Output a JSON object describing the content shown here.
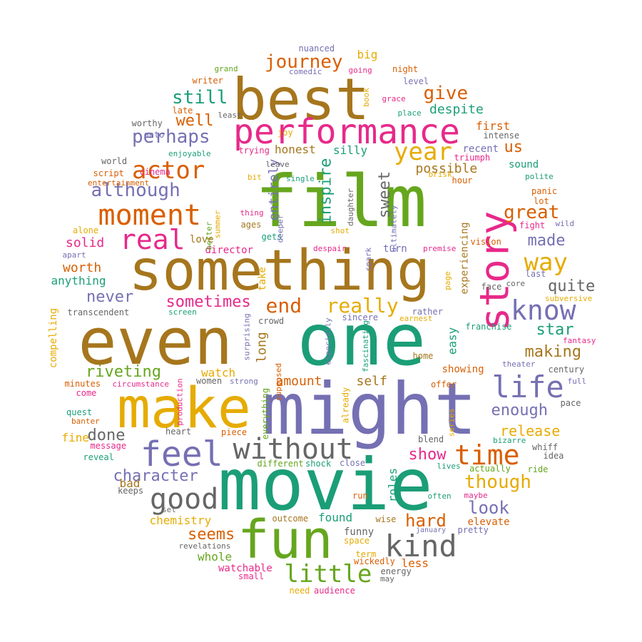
{
  "colors": {
    "green": "#66a61e",
    "purple": "#7570b3",
    "teal": "#1b9e77",
    "brown": "#a6761d",
    "orange": "#d95f02",
    "pink": "#e7298a",
    "gold": "#e6ab02",
    "gray": "#666666"
  },
  "words": [
    {
      "text": "film",
      "color": "green"
    },
    {
      "text": "one",
      "color": "teal"
    },
    {
      "text": "might",
      "color": "purple"
    },
    {
      "text": "movie",
      "color": "teal"
    },
    {
      "text": "fun",
      "color": "green"
    },
    {
      "text": "even",
      "color": "brown"
    },
    {
      "text": "make",
      "color": "gold"
    },
    {
      "text": "something",
      "color": "brown"
    },
    {
      "text": "best",
      "color": "brown"
    },
    {
      "text": "story",
      "color": "pink"
    },
    {
      "text": "performance",
      "color": "pink"
    },
    {
      "text": "feel",
      "color": "purple"
    },
    {
      "text": "moment",
      "color": "orange"
    },
    {
      "text": "real",
      "color": "pink"
    },
    {
      "text": "without",
      "color": "gray"
    },
    {
      "text": "good",
      "color": "gray"
    },
    {
      "text": "kind",
      "color": "gray"
    },
    {
      "text": "life",
      "color": "purple"
    },
    {
      "text": "time",
      "color": "orange"
    },
    {
      "text": "know",
      "color": "purple"
    },
    {
      "text": "actor",
      "color": "orange"
    },
    {
      "text": "year",
      "color": "gold"
    },
    {
      "text": "little",
      "color": "green"
    },
    {
      "text": "way",
      "color": "gold"
    },
    {
      "text": "journey",
      "color": "orange"
    },
    {
      "text": "perhaps",
      "color": "purple"
    },
    {
      "text": "although",
      "color": "purple"
    },
    {
      "text": "still",
      "color": "teal"
    },
    {
      "text": "give",
      "color": "orange"
    },
    {
      "text": "great",
      "color": "orange"
    },
    {
      "text": "really",
      "color": "gold"
    },
    {
      "text": "end",
      "color": "orange"
    },
    {
      "text": "sometimes",
      "color": "pink"
    },
    {
      "text": "never",
      "color": "purple"
    },
    {
      "text": "well",
      "color": "orange"
    },
    {
      "text": "us",
      "color": "orange"
    },
    {
      "text": "despite",
      "color": "teal"
    },
    {
      "text": "made",
      "color": "purple"
    },
    {
      "text": "quite",
      "color": "gray"
    },
    {
      "text": "star",
      "color": "teal"
    },
    {
      "text": "making",
      "color": "brown"
    },
    {
      "text": "enough",
      "color": "purple"
    },
    {
      "text": "release",
      "color": "gold"
    },
    {
      "text": "though",
      "color": "gold"
    },
    {
      "text": "show",
      "color": "pink"
    },
    {
      "text": "look",
      "color": "purple"
    },
    {
      "text": "hard",
      "color": "orange"
    },
    {
      "text": "character",
      "color": "purple"
    },
    {
      "text": "done",
      "color": "gray"
    },
    {
      "text": "riveting",
      "color": "green"
    },
    {
      "text": "seems",
      "color": "orange"
    },
    {
      "text": "sweet",
      "color": "gray"
    },
    {
      "text": "inspire",
      "color": "teal"
    },
    {
      "text": "entirely",
      "color": "purple"
    },
    {
      "text": "possible",
      "color": "brown"
    },
    {
      "text": "long",
      "color": "brown"
    },
    {
      "text": "watch",
      "color": "gold"
    },
    {
      "text": "self",
      "color": "brown"
    },
    {
      "text": "amount",
      "color": "orange"
    },
    {
      "text": "solid",
      "color": "pink"
    },
    {
      "text": "worth",
      "color": "orange"
    },
    {
      "text": "anything",
      "color": "teal"
    },
    {
      "text": "honest",
      "color": "brown"
    },
    {
      "text": "silly",
      "color": "teal"
    },
    {
      "text": "first",
      "color": "orange"
    },
    {
      "text": "recent",
      "color": "purple"
    },
    {
      "text": "sound",
      "color": "teal"
    },
    {
      "text": "director",
      "color": "pink"
    },
    {
      "text": "love",
      "color": "brown"
    },
    {
      "text": "turn",
      "color": "purple"
    },
    {
      "text": "big",
      "color": "gold"
    },
    {
      "text": "chemistry",
      "color": "gold"
    },
    {
      "text": "whole",
      "color": "green"
    },
    {
      "text": "watchable",
      "color": "pink"
    },
    {
      "text": "found",
      "color": "teal"
    },
    {
      "text": "funny",
      "color": "gray"
    },
    {
      "text": "elevate",
      "color": "orange"
    },
    {
      "text": "roles",
      "color": "teal"
    },
    {
      "text": "less",
      "color": "orange"
    },
    {
      "text": "easy",
      "color": "teal"
    },
    {
      "text": "experiencing",
      "color": "brown"
    },
    {
      "text": "showing",
      "color": "orange"
    },
    {
      "text": "fine",
      "color": "gold"
    },
    {
      "text": "bad",
      "color": "brown"
    },
    {
      "text": "compelling",
      "color": "gold"
    },
    {
      "text": "transcendent",
      "color": "gray"
    },
    {
      "text": "take",
      "color": "gold"
    },
    {
      "text": "crowd",
      "color": "gray"
    },
    {
      "text": "sincere",
      "color": "purple"
    },
    {
      "text": "rather",
      "color": "purple"
    },
    {
      "text": "earnest",
      "color": "gold"
    },
    {
      "text": "franchise",
      "color": "teal"
    },
    {
      "text": "century",
      "color": "gray"
    },
    {
      "text": "full",
      "color": "purple"
    },
    {
      "text": "pace",
      "color": "gray"
    },
    {
      "text": "offer",
      "color": "orange"
    },
    {
      "text": "different",
      "color": "green"
    },
    {
      "text": "shock",
      "color": "teal"
    },
    {
      "text": "close",
      "color": "purple"
    },
    {
      "text": "run",
      "color": "orange"
    },
    {
      "text": "outcome",
      "color": "brown"
    },
    {
      "text": "wise",
      "color": "brown"
    },
    {
      "text": "space",
      "color": "gold"
    },
    {
      "text": "term",
      "color": "gold"
    },
    {
      "text": "wickedly",
      "color": "orange"
    },
    {
      "text": "energy",
      "color": "gray"
    },
    {
      "text": "may",
      "color": "gray"
    },
    {
      "text": "small",
      "color": "pink"
    },
    {
      "text": "need",
      "color": "gold"
    },
    {
      "text": "audience",
      "color": "pink"
    },
    {
      "text": "revelations",
      "color": "gray"
    },
    {
      "text": "keeps",
      "color": "gray"
    },
    {
      "text": "set",
      "color": "gray"
    },
    {
      "text": "reveal",
      "color": "teal"
    },
    {
      "text": "message",
      "color": "pink"
    },
    {
      "text": "heart",
      "color": "gray"
    },
    {
      "text": "piece",
      "color": "orange"
    },
    {
      "text": "banter",
      "color": "orange"
    },
    {
      "text": "quest",
      "color": "teal"
    },
    {
      "text": "come",
      "color": "pink"
    },
    {
      "text": "minutes",
      "color": "orange"
    },
    {
      "text": "circumstance",
      "color": "pink"
    },
    {
      "text": "women",
      "color": "gray"
    },
    {
      "text": "strong",
      "color": "purple"
    },
    {
      "text": "production",
      "color": "pink"
    },
    {
      "text": "everything",
      "color": "green"
    },
    {
      "text": "supposed",
      "color": "orange"
    },
    {
      "text": "surprising",
      "color": "purple"
    },
    {
      "text": "especially",
      "color": "purple"
    },
    {
      "text": "fascinating",
      "color": "teal"
    },
    {
      "text": "already",
      "color": "gold"
    },
    {
      "text": "series",
      "color": "gold"
    },
    {
      "text": "blend",
      "color": "gray"
    },
    {
      "text": "lives",
      "color": "teal"
    },
    {
      "text": "actually",
      "color": "green"
    },
    {
      "text": "often",
      "color": "teal"
    },
    {
      "text": "maybe",
      "color": "pink"
    },
    {
      "text": "january",
      "color": "purple"
    },
    {
      "text": "pretty",
      "color": "purple"
    },
    {
      "text": "ride",
      "color": "green"
    },
    {
      "text": "idea",
      "color": "gray"
    },
    {
      "text": "whiff",
      "color": "gray"
    },
    {
      "text": "bizarre",
      "color": "teal"
    },
    {
      "text": "home",
      "color": "brown"
    },
    {
      "text": "theater",
      "color": "purple"
    },
    {
      "text": "fantasy",
      "color": "pink"
    },
    {
      "text": "subversive",
      "color": "gold"
    },
    {
      "text": "face",
      "color": "gray"
    },
    {
      "text": "core",
      "color": "gray"
    },
    {
      "text": "last",
      "color": "purple"
    },
    {
      "text": "page",
      "color": "gold"
    },
    {
      "text": "vision",
      "color": "orange"
    },
    {
      "text": "premise",
      "color": "pink"
    },
    {
      "text": "despair",
      "color": "pink"
    },
    {
      "text": "spark",
      "color": "purple"
    },
    {
      "text": "shot",
      "color": "gold"
    },
    {
      "text": "gets",
      "color": "teal"
    },
    {
      "text": "ages",
      "color": "brown"
    },
    {
      "text": "deeper",
      "color": "purple"
    },
    {
      "text": "better",
      "color": "green"
    },
    {
      "text": "summer",
      "color": "gold"
    },
    {
      "text": "thing",
      "color": "pink"
    },
    {
      "text": "ultimately",
      "color": "purple"
    },
    {
      "text": "daughter",
      "color": "gray"
    },
    {
      "text": "bit",
      "color": "gold"
    },
    {
      "text": "single",
      "color": "teal"
    },
    {
      "text": "leave",
      "color": "gray"
    },
    {
      "text": "brisk",
      "color": "gold"
    },
    {
      "text": "hour",
      "color": "orange"
    },
    {
      "text": "polite",
      "color": "teal"
    },
    {
      "text": "panic",
      "color": "orange"
    },
    {
      "text": "lot",
      "color": "orange"
    },
    {
      "text": "fight",
      "color": "pink"
    },
    {
      "text": "wild",
      "color": "purple"
    },
    {
      "text": "triumph",
      "color": "pink"
    },
    {
      "text": "intense",
      "color": "gray"
    },
    {
      "text": "trying",
      "color": "pink"
    },
    {
      "text": "joy",
      "color": "gold"
    },
    {
      "text": "enjoyable",
      "color": "teal"
    },
    {
      "text": "cinema",
      "color": "pink"
    },
    {
      "text": "world",
      "color": "gray"
    },
    {
      "text": "script",
      "color": "orange"
    },
    {
      "text": "entertainment",
      "color": "orange"
    },
    {
      "text": "alone",
      "color": "gold"
    },
    {
      "text": "apart",
      "color": "purple"
    },
    {
      "text": "worthy",
      "color": "gray"
    },
    {
      "text": "onto",
      "color": "purple"
    },
    {
      "text": "late",
      "color": "orange"
    },
    {
      "text": "least",
      "color": "gray"
    },
    {
      "text": "writer",
      "color": "orange"
    },
    {
      "text": "grand",
      "color": "green"
    },
    {
      "text": "comedic",
      "color": "purple"
    },
    {
      "text": "nuanced",
      "color": "purple"
    },
    {
      "text": "going",
      "color": "pink"
    },
    {
      "text": "night",
      "color": "orange"
    },
    {
      "text": "level",
      "color": "purple"
    },
    {
      "text": "book",
      "color": "gold"
    },
    {
      "text": "grace",
      "color": "pink"
    },
    {
      "text": "place",
      "color": "teal"
    },
    {
      "text": "screen",
      "color": "teal"
    }
  ]
}
